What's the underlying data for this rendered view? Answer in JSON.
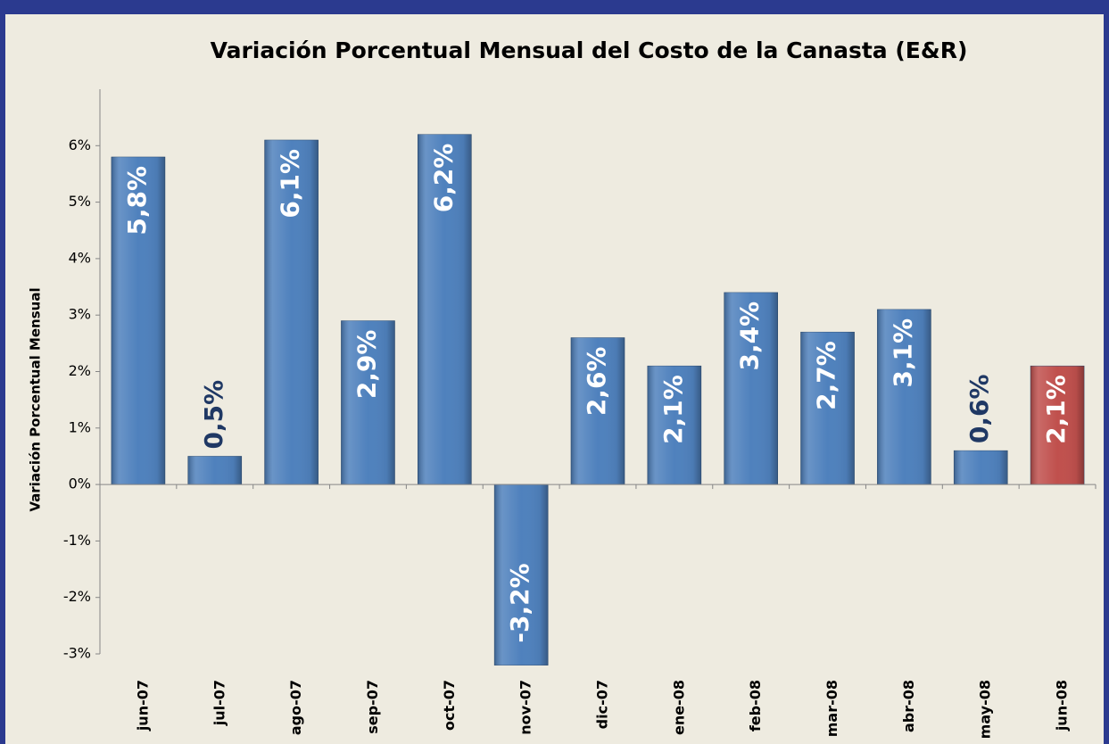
{
  "chart_data": {
    "type": "bar",
    "title": "Variación Porcentual Mensual del Costo de la Canasta (E&R)",
    "y_label": "Variación Porcentual Mensual",
    "categories": [
      "jun-07",
      "jul-07",
      "ago-07",
      "sep-07",
      "oct-07",
      "nov-07",
      "dic-07",
      "ene-08",
      "feb-08",
      "mar-08",
      "abr-08",
      "may-08",
      "jun-08"
    ],
    "values": [
      5.8,
      0.5,
      6.1,
      2.9,
      6.2,
      -3.2,
      2.6,
      2.1,
      3.4,
      2.7,
      3.1,
      0.6,
      2.1
    ],
    "value_labels": [
      "5,8%",
      "0,5%",
      "6,1%",
      "2,9%",
      "6,2%",
      "-3,2%",
      "2,6%",
      "2,1%",
      "3,4%",
      "2,7%",
      "3,1%",
      "0,6%",
      "2,1%"
    ],
    "colors": [
      "#4f81bd",
      "#4f81bd",
      "#4f81bd",
      "#4f81bd",
      "#4f81bd",
      "#4f81bd",
      "#4f81bd",
      "#4f81bd",
      "#4f81bd",
      "#4f81bd",
      "#4f81bd",
      "#4f81bd",
      "#c0504d"
    ],
    "ylim": [
      -3,
      7
    ],
    "yticks": [
      {
        "value": -3,
        "label": "-3%"
      },
      {
        "value": -2,
        "label": "-2%"
      },
      {
        "value": -1,
        "label": "-1%"
      },
      {
        "value": 0,
        "label": "0%"
      },
      {
        "value": 1,
        "label": "1%"
      },
      {
        "value": 2,
        "label": "2%"
      },
      {
        "value": 3,
        "label": "3%"
      },
      {
        "value": 4,
        "label": "4%"
      },
      {
        "value": 5,
        "label": "5%"
      },
      {
        "value": 6,
        "label": "6%"
      }
    ],
    "grid": false
  }
}
